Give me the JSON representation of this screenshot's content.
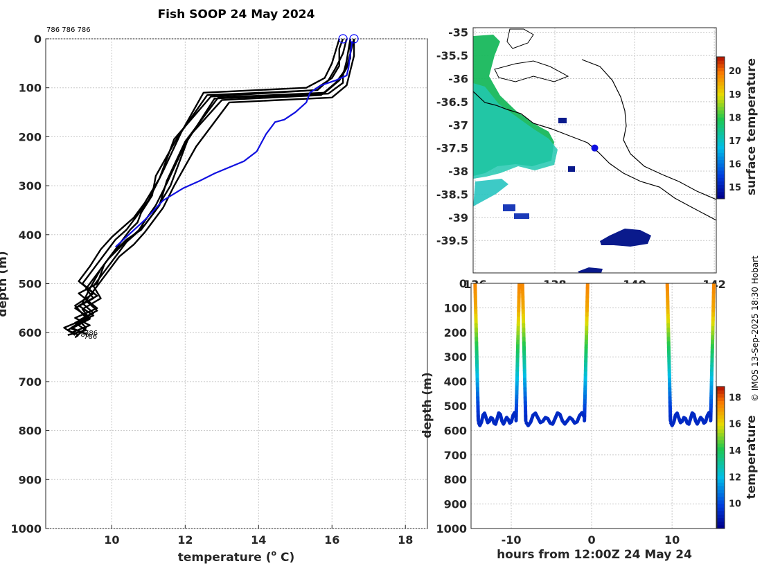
{
  "title": "Fish SOOP 24 May 2024",
  "credit": "© IMOS 13-Sep-2025 18:30 Hobart",
  "colors": {
    "profile": "#000000",
    "latest": "#1010e0",
    "marker": "#0000ff"
  },
  "chart_data": [
    {
      "type": "line",
      "name": "temperature-profiles",
      "xlabel": "temperature (",
      "xlabel_sup": "o",
      "xlabel_tail": " C)",
      "ylabel": "depth (m)",
      "xlim": [
        8.2,
        18.6
      ],
      "ylim": [
        0,
        1000
      ],
      "xticks": [
        10,
        12,
        14,
        16,
        18
      ],
      "yticks": [
        0,
        100,
        200,
        300,
        400,
        500,
        600,
        700,
        800,
        900,
        1000
      ],
      "top_annotation": "786 786 786",
      "bottom_annotations": [
        "786",
        "786",
        "786"
      ],
      "surface_markers": [
        {
          "temp": 16.3,
          "depth": 0
        },
        {
          "temp": 16.6,
          "depth": 0
        }
      ],
      "latest_profile": {
        "temp": [
          16.55,
          16.5,
          16.45,
          16.4,
          16.1,
          15.7,
          15.4,
          15.3,
          15.0,
          14.7,
          14.45,
          14.2,
          13.95,
          13.6,
          12.8,
          12.4,
          11.95,
          11.4,
          10.9,
          10.1
        ],
        "depth": [
          5,
          30,
          60,
          75,
          85,
          95,
          110,
          130,
          150,
          165,
          170,
          195,
          230,
          250,
          275,
          290,
          305,
          330,
          370,
          425
        ]
      },
      "series": [
        {
          "temp": [
            16.4,
            16.3,
            16.1,
            15.9,
            15.6,
            12.6,
            11.8,
            11.2,
            11.1,
            10.8,
            10.7,
            10.5,
            10.2,
            9.8,
            9.6,
            9.1,
            9.6,
            9.0,
            9.4,
            8.9
          ],
          "depth": [
            0,
            30,
            60,
            85,
            105,
            115,
            200,
            280,
            320,
            355,
            375,
            390,
            420,
            460,
            500,
            520,
            550,
            570,
            585,
            600
          ]
        },
        {
          "temp": [
            16.6,
            16.5,
            16.4,
            16.2,
            15.8,
            12.9,
            12.0,
            11.5,
            11.3,
            11.0,
            10.8,
            10.4,
            10.0,
            9.7,
            9.4,
            9.2,
            9.5,
            9.0,
            9.3,
            8.8
          ],
          "depth": [
            0,
            30,
            60,
            85,
            110,
            120,
            210,
            290,
            340,
            370,
            390,
            410,
            440,
            470,
            510,
            540,
            560,
            580,
            595,
            605
          ]
        },
        {
          "temp": [
            16.5,
            16.5,
            16.3,
            16.1,
            15.7,
            13.0,
            12.1,
            11.6,
            11.2,
            10.9,
            10.6,
            10.3,
            9.9,
            9.6,
            9.3,
            9.5,
            9.0,
            9.4,
            8.9,
            9.2
          ],
          "depth": [
            0,
            40,
            70,
            90,
            115,
            125,
            200,
            300,
            350,
            380,
            400,
            420,
            450,
            480,
            510,
            530,
            550,
            570,
            590,
            600
          ]
        },
        {
          "temp": [
            16.2,
            16.1,
            16.0,
            15.8,
            15.3,
            12.5,
            11.9,
            11.4,
            11.0,
            10.7,
            10.4,
            10.1,
            9.8,
            9.5,
            9.2,
            9.6,
            9.1,
            9.5,
            8.7,
            9.0
          ],
          "depth": [
            0,
            25,
            50,
            80,
            100,
            110,
            190,
            270,
            330,
            360,
            390,
            410,
            440,
            470,
            500,
            525,
            545,
            565,
            590,
            605
          ]
        },
        {
          "temp": [
            16.6,
            16.6,
            16.5,
            16.4,
            16.0,
            13.2,
            12.3,
            11.7,
            11.4,
            11.1,
            10.9,
            10.6,
            10.2,
            9.9,
            9.6,
            9.3,
            9.6,
            9.1,
            9.3,
            9.0
          ],
          "depth": [
            0,
            35,
            65,
            95,
            120,
            130,
            220,
            300,
            345,
            375,
            395,
            420,
            445,
            475,
            505,
            535,
            555,
            575,
            590,
            610
          ]
        },
        {
          "temp": [
            16.3,
            16.2,
            16.2,
            16.0,
            15.5,
            12.7,
            11.7,
            11.3,
            10.9,
            10.6,
            10.3,
            10.0,
            9.7,
            9.4,
            9.1,
            9.5,
            9.0,
            9.3,
            8.8,
            9.1
          ],
          "depth": [
            0,
            20,
            55,
            80,
            105,
            118,
            205,
            285,
            335,
            365,
            385,
            405,
            430,
            465,
            495,
            520,
            545,
            570,
            595,
            605
          ]
        },
        {
          "temp": [
            16.5,
            16.4,
            16.3,
            16.3,
            15.9,
            12.8,
            12.0,
            11.5,
            11.2,
            10.9,
            10.7,
            10.4,
            10.1,
            9.8,
            9.5,
            9.7,
            9.2,
            9.4,
            8.9,
            9.3
          ],
          "depth": [
            0,
            45,
            75,
            90,
            112,
            122,
            215,
            295,
            340,
            372,
            395,
            415,
            445,
            475,
            505,
            530,
            552,
            572,
            592,
            602
          ]
        }
      ]
    },
    {
      "type": "heatmap",
      "name": "surface-temperature-map",
      "xticks": [
        136,
        138,
        140,
        142
      ],
      "xtick_labels": [
        "136",
        "138",
        "140",
        "142"
      ],
      "xlim": [
        135.95,
        142.05
      ],
      "yticks": [
        -35,
        -35.5,
        -36,
        -36.5,
        -37,
        -37.5,
        -38,
        -38.5,
        -39,
        -39.5
      ],
      "ylim": [
        -40.2,
        -34.9
      ],
      "colorbar_label": "surface temperature",
      "colorbar_ticks": [
        15,
        16,
        17,
        18,
        19,
        20
      ],
      "colorbar_range": [
        14.5,
        20.6
      ],
      "position_marker": {
        "lon": 139.0,
        "lat": -37.5
      }
    },
    {
      "type": "scatter",
      "name": "depth-time-section",
      "xlabel": "hours from 12:00Z 24 May 24",
      "ylabel": "depth (m)",
      "xlim": [
        -15,
        15.5
      ],
      "ylim": [
        0,
        1000
      ],
      "xticks": [
        -10,
        0,
        10
      ],
      "yticks": [
        0,
        100,
        200,
        300,
        400,
        500,
        600,
        700,
        800,
        900,
        1000
      ],
      "colorbar_label": "temperature",
      "colorbar_ticks": [
        10,
        12,
        14,
        16,
        18
      ],
      "colorbar_range": [
        8.1,
        18.8
      ],
      "casts": [
        {
          "down": -14.5,
          "bottom_from": -14.1,
          "bottom_to": -9.4,
          "up": -9.0
        },
        {
          "down": -8.6,
          "bottom_from": -8.2,
          "bottom_to": -0.9,
          "up": -0.5
        },
        {
          "down": 9.4,
          "bottom_from": 9.8,
          "bottom_to": 14.8,
          "up": 15.2
        }
      ]
    }
  ]
}
